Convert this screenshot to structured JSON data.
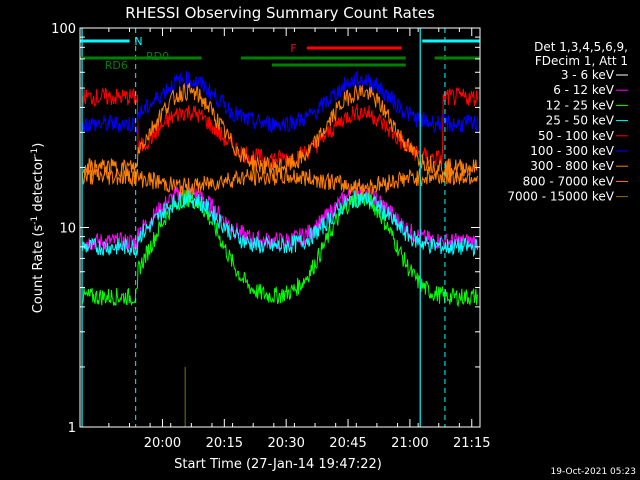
{
  "chart_data": {
    "type": "line",
    "title": "RHESSI Observing Summary Count Rates",
    "xlabel": "Start Time (27-Jan-14 19:47:22)",
    "ylabel_main": "Count Rate (s",
    "ylabel_sup": "-1",
    "ylabel_mid": " detector",
    "ylabel_sup2": "-1",
    "ylabel_end": ")",
    "y_scale": "log",
    "ylim": [
      1,
      100
    ],
    "xlim_minutes": [
      -7.0,
      90.0
    ],
    "x_ticks": [
      {
        "label": "20:00",
        "min": 13
      },
      {
        "label": "20:15",
        "min": 28
      },
      {
        "label": "20:30",
        "min": 43
      },
      {
        "label": "20:45",
        "min": 58
      },
      {
        "label": "21:00",
        "min": 73
      },
      {
        "label": "21:15",
        "min": 88
      }
    ],
    "y_ticks": [
      {
        "label": "1",
        "value": 1
      },
      {
        "label": "10",
        "value": 10
      },
      {
        "label": "100",
        "value": 100
      }
    ],
    "legend_header": [
      "Det 1,3,4,5,6,9,",
      "FDecim 1, Att 1"
    ],
    "series": [
      {
        "name": "3 - 6 keV",
        "color": "#000000",
        "base": 8.5,
        "peak": 14,
        "sunlit_low": 8.5
      },
      {
        "name": "6 - 12 keV",
        "color": "#ff00ff",
        "base": 8.5,
        "peak": 15,
        "sunlit_low": 8.5
      },
      {
        "name": "12 - 25 keV",
        "color": "#00ff00",
        "base": 4.5,
        "peak": 14,
        "sunlit_low": 4.5
      },
      {
        "name": "25 - 50 keV",
        "color": "#00ffff",
        "base": 8.0,
        "peak": 14,
        "sunlit_low": 8.0
      },
      {
        "name": "50 - 100 keV",
        "color": "#ff0000",
        "base": 45,
        "peak": 38,
        "sunlit_low": 22
      },
      {
        "name": "100 - 300 keV",
        "color": "#0000ff",
        "base": 33,
        "peak": 55,
        "sunlit_low": 33
      },
      {
        "name": "300 - 800 keV",
        "color": "#ff8000",
        "base": 20,
        "peak": 48,
        "sunlit_low": 20
      },
      {
        "name": "800 - 7000 keV",
        "color": "#ff8000",
        "base": 18,
        "peak": 16,
        "sunlit_low": 18
      },
      {
        "name": "7000 - 15000 keV",
        "color": "#8b6914",
        "base": 1.0,
        "peak": 2.0,
        "sunlit_low": 1.0
      }
    ],
    "flags": [
      {
        "label": "N",
        "color": "#00ffff"
      },
      {
        "label": "F",
        "color": "#ff0000"
      },
      {
        "label": "RD0",
        "color": "#008000"
      },
      {
        "label": "RD6",
        "color": "#008000"
      }
    ],
    "footer_date": "19-Oct-2021 05:23"
  }
}
